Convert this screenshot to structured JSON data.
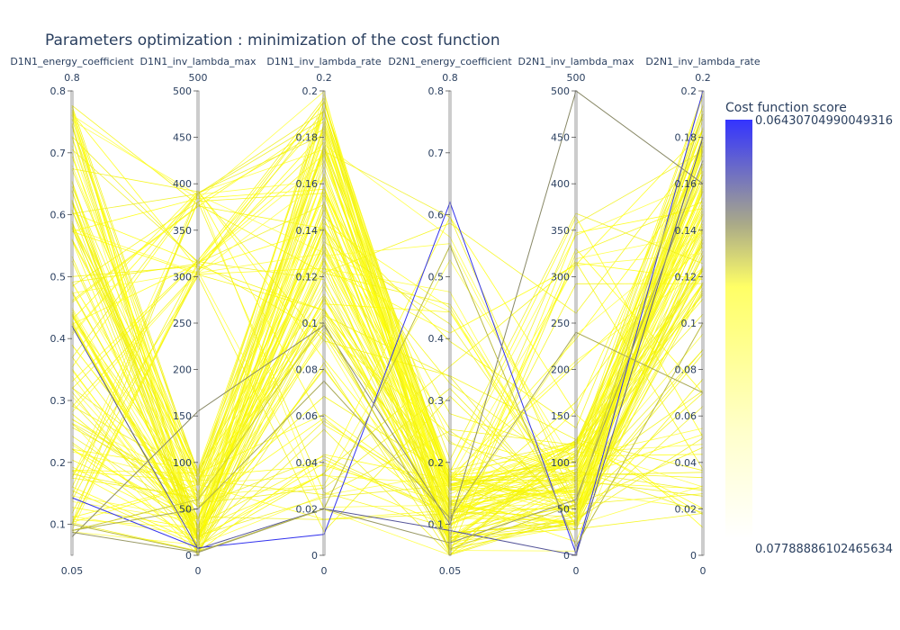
{
  "chart_data": {
    "type": "parallel-coordinates",
    "title": "Parameters optimization : minimization of the cost function",
    "dimensions": [
      {
        "label": "D1N1_energy_coefficient",
        "range": [
          0.05,
          0.8
        ],
        "ticks": [
          0.1,
          0.2,
          0.3,
          0.4,
          0.5,
          0.6,
          0.7,
          0.8
        ],
        "tick_labels": [
          "0.1",
          "0.2",
          "0.3",
          "0.4",
          "0.5",
          "0.6",
          "0.7",
          "0.8"
        ],
        "min_label": "0.05",
        "max_label": "0.8"
      },
      {
        "label": "D1N1_inv_lambda_max",
        "range": [
          0,
          500
        ],
        "ticks": [
          0,
          50,
          100,
          150,
          200,
          250,
          300,
          350,
          400,
          450,
          500
        ],
        "tick_labels": [
          "0",
          "50",
          "100",
          "150",
          "200",
          "250",
          "300",
          "350",
          "400",
          "450",
          "500"
        ],
        "min_label": "0",
        "max_label": "500"
      },
      {
        "label": "D1N1_inv_lambda_rate",
        "range": [
          0,
          0.2
        ],
        "ticks": [
          0,
          0.02,
          0.04,
          0.06,
          0.08,
          0.1,
          0.12,
          0.14,
          0.16,
          0.18,
          0.2
        ],
        "tick_labels": [
          "0",
          "0.02",
          "0.04",
          "0.06",
          "0.08",
          "0.1",
          "0.12",
          "0.14",
          "0.16",
          "0.18",
          "0.2"
        ],
        "min_label": "0",
        "max_label": "0.2"
      },
      {
        "label": "D2N1_energy_coefficient",
        "range": [
          0.05,
          0.8
        ],
        "ticks": [
          0.1,
          0.2,
          0.3,
          0.4,
          0.5,
          0.6,
          0.7,
          0.8
        ],
        "tick_labels": [
          "0.1",
          "0.2",
          "0.3",
          "0.4",
          "0.5",
          "0.6",
          "0.7",
          "0.8"
        ],
        "min_label": "0.05",
        "max_label": "0.8"
      },
      {
        "label": "D2N1_inv_lambda_max",
        "range": [
          0,
          500
        ],
        "ticks": [
          0,
          50,
          100,
          150,
          200,
          250,
          300,
          350,
          400,
          450,
          500
        ],
        "tick_labels": [
          "0",
          "50",
          "100",
          "150",
          "200",
          "250",
          "300",
          "350",
          "400",
          "450",
          "500"
        ],
        "min_label": "0",
        "max_label": "500"
      },
      {
        "label": "D2N1_inv_lambda_rate",
        "range": [
          0,
          0.2
        ],
        "ticks": [
          0,
          0.02,
          0.04,
          0.06,
          0.08,
          0.1,
          0.12,
          0.14,
          0.16,
          0.18,
          0.2
        ],
        "tick_labels": [
          "0",
          "0.02",
          "0.04",
          "0.06",
          "0.08",
          "0.1",
          "0.12",
          "0.14",
          "0.16",
          "0.18",
          "0.2"
        ],
        "min_label": "0",
        "max_label": "0.2"
      }
    ],
    "colorbar": {
      "title": "Cost function score",
      "max_label": "0.06430704990049316",
      "min_label": "0.07788886102465634",
      "colors": [
        "#3333ff",
        "#aaaa88",
        "#ffff66",
        "#ffffcc",
        "#ffffff"
      ]
    },
    "highlight_lines": [
      {
        "color": "#3333ee",
        "values": [
          0.143,
          8,
          0.009,
          0.62,
          2,
          0.2
        ]
      },
      {
        "color": "#555599",
        "values": [
          0.42,
          7,
          0.02,
          0.09,
          0,
          0.18
        ]
      },
      {
        "color": "#999966",
        "values": [
          0.087,
          3,
          0.02,
          0.07,
          60,
          0.17
        ]
      },
      {
        "color": "#888866",
        "values": [
          0.08,
          155,
          0.099,
          0.1,
          500,
          0.16
        ]
      },
      {
        "color": "#aaaa55",
        "values": [
          0.09,
          50,
          0.075,
          0.11,
          240,
          0.07
        ]
      },
      {
        "color": "#bbbb44",
        "values": [
          0.1,
          4,
          0.02,
          0.55,
          10,
          0.1
        ]
      },
      {
        "color": "#cccc33",
        "values": [
          0.09,
          60,
          0.1,
          0.06,
          55,
          0.19
        ]
      }
    ]
  }
}
